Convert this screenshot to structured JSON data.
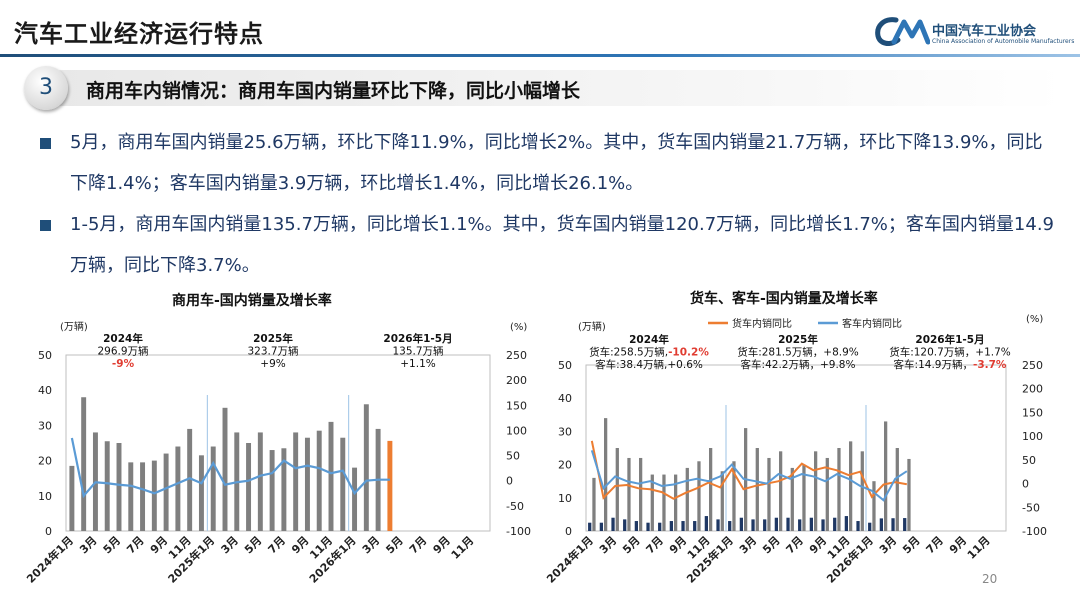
{
  "header": {
    "title": "汽车工业经济运行特点",
    "logo_text": "中国汽车工业协会",
    "logo_subtitle": "China Association of Automobile Manufacturers",
    "logo_mark": "CAAM"
  },
  "section": {
    "number": "3",
    "title": "商用车内销情况：商用车国内销量环比下降，同比小幅增长"
  },
  "bullets": [
    {
      "text": "5月，商用车国内销量25.6万辆，环比下降11.9%，同比增长2%。其中，货车国内销量21.7万辆，环比下降13.9%，同比下降1.4%；客车国内销量3.9万辆，环比增长1.4%，同比增长26.1%。"
    },
    {
      "text": "1-5月，商用车国内销量135.7万辆，同比增长1.1%。其中，货车国内销量120.7万辆，同比增长1.7%；客车国内销量14.9万辆，同比下降3.7%。"
    }
  ],
  "watermark": "中国汽车工业协会",
  "page_number": "20",
  "colors": {
    "bar_gray": "#7f7f7f",
    "bar_highlight": "#ed7d31",
    "bus_bar": "#1f3864",
    "line_blue": "#5b9bd5",
    "line_orange": "#ed7d31",
    "accent_red": "#e03c31",
    "title_blue": "#1f4e79"
  },
  "chart_data": [
    {
      "type": "bar",
      "title": "商用车-国内销量及增长率",
      "ylabel": "(万辆)",
      "y2label": "(%)",
      "ylim": [
        0,
        50
      ],
      "y2lim": [
        -100,
        250
      ],
      "yticks": [
        0,
        10,
        20,
        30,
        40,
        50
      ],
      "y2ticks": [
        -100,
        -50,
        0,
        50,
        100,
        150,
        200,
        250
      ],
      "grid": false,
      "xtick_labels": [
        "2024年1月",
        "3月",
        "5月",
        "7月",
        "9月",
        "11月",
        "2025年1月",
        "3月",
        "5月",
        "7月",
        "9月",
        "11月",
        "2026年1月",
        "3月",
        "5月",
        "7月",
        "9月",
        "11月"
      ],
      "categories_count": 36,
      "series": [
        {
          "kind": "bar",
          "values": [
            18.5,
            38,
            28,
            25.5,
            25,
            19.5,
            19.5,
            20,
            22,
            24,
            29,
            21.5,
            24,
            35,
            28,
            25,
            28,
            23,
            23.5,
            28,
            26.5,
            28.5,
            31,
            26.5,
            18,
            36,
            29,
            25.6,
            null,
            null,
            null,
            null,
            null,
            null,
            null,
            null
          ],
          "highlight_index": 27
        },
        {
          "kind": "line",
          "axis": "right",
          "values": [
            85,
            -30,
            -3,
            -5,
            -8,
            -10,
            -17,
            -25,
            -15,
            -5,
            5,
            -5,
            35,
            -8,
            -3,
            0,
            10,
            15,
            40,
            25,
            30,
            25,
            15,
            20,
            -25,
            0,
            2,
            2,
            null,
            null,
            null,
            null,
            null,
            null,
            null,
            null
          ]
        }
      ],
      "annotations": [
        {
          "lines": [
            "2024年",
            "296.9万辆",
            "-9%"
          ],
          "highlight_last": true
        },
        {
          "lines": [
            "2025年",
            "323.7万辆",
            "+9%"
          ],
          "highlight_last": false
        },
        {
          "lines": [
            "2026年1-5月",
            "135.7万辆",
            "+1.1%"
          ],
          "highlight_last": false
        }
      ]
    },
    {
      "type": "bar",
      "title": "货车、客车-国内销量及增长率",
      "ylabel": "(万辆)",
      "y2label": "(%)",
      "ylim": [
        0,
        50
      ],
      "y2lim": [
        -100,
        250
      ],
      "yticks": [
        0,
        10,
        20,
        30,
        40,
        50
      ],
      "y2ticks": [
        -100,
        -50,
        0,
        50,
        100,
        150,
        200,
        250
      ],
      "grid": false,
      "legend_position": "top",
      "xtick_labels": [
        "2024年1月",
        "3月",
        "5月",
        "7月",
        "9月",
        "11月",
        "2025年1月",
        "3月",
        "5月",
        "7月",
        "9月",
        "11月",
        "2026年1月",
        "3月",
        "5月",
        "7月",
        "9月",
        "11月"
      ],
      "categories_count": 36,
      "series": [
        {
          "kind": "bar",
          "name": "",
          "values": [
            16,
            34,
            25,
            22,
            22,
            17,
            17,
            17,
            19,
            21,
            25,
            18,
            21,
            31,
            25,
            22,
            24,
            19,
            20,
            24,
            22,
            25,
            27,
            24,
            15,
            33,
            25,
            21.7,
            null,
            null,
            null,
            null,
            null,
            null,
            null,
            null
          ]
        },
        {
          "kind": "bar",
          "name": "",
          "values": [
            2.5,
            2.5,
            4,
            3.5,
            3,
            2.5,
            2.5,
            3,
            3,
            3,
            4.5,
            3.5,
            3,
            4,
            3.5,
            3.5,
            4,
            4,
            3.5,
            4,
            3.5,
            4,
            4.5,
            3,
            2.5,
            3.8,
            3.85,
            3.9,
            null,
            null,
            null,
            null,
            null,
            null,
            null,
            null
          ]
        },
        {
          "kind": "line",
          "axis": "right",
          "name": "货车内销同比",
          "values": [
            90,
            -30,
            -5,
            -3,
            -10,
            -12,
            -18,
            -32,
            -20,
            -10,
            2,
            -8,
            30,
            -12,
            -5,
            0,
            5,
            15,
            42,
            28,
            34,
            28,
            18,
            25,
            -28,
            -2,
            3,
            -1.4,
            null,
            null,
            null,
            null,
            null,
            null,
            null,
            null
          ]
        },
        {
          "kind": "line",
          "axis": "right",
          "name": "客车内销同比",
          "values": [
            70,
            -10,
            15,
            5,
            0,
            5,
            -5,
            -2,
            5,
            10,
            5,
            15,
            40,
            10,
            5,
            0,
            20,
            10,
            20,
            15,
            5,
            20,
            10,
            -5,
            -15,
            -35,
            10,
            26.1,
            null,
            null,
            null,
            null,
            null,
            null,
            null,
            null
          ]
        }
      ],
      "annotations": [
        {
          "lines": [
            "2024年",
            "货车:258.5万辆,-10.2%",
            "客车:38.4万辆,+0.6%"
          ]
        },
        {
          "lines": [
            "2025年",
            "货车:281.5万辆，+8.9%",
            "客车:42.2万辆，+9.8%"
          ]
        },
        {
          "lines": [
            "2026年1-5月",
            "货车:120.7万辆，+1.7%",
            "客车:14.9万辆，-3.7%"
          ]
        }
      ]
    }
  ]
}
